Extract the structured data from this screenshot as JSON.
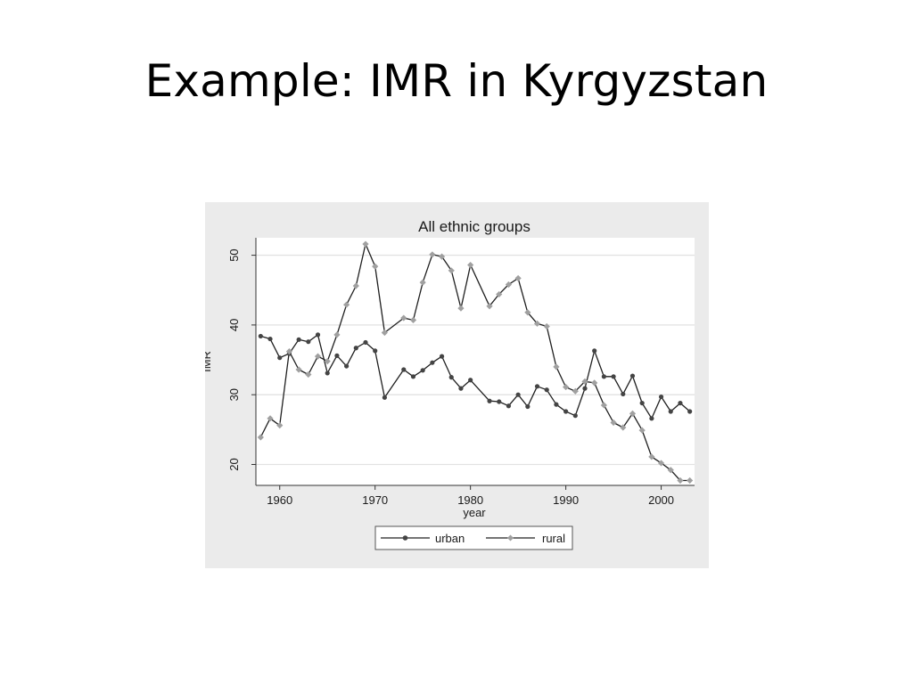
{
  "slide": {
    "title": "Example: IMR in Kyrgyzstan"
  },
  "chart_data": {
    "type": "line",
    "title": "All ethnic groups",
    "xlabel": "year",
    "ylabel": "IMR",
    "xlim": [
      1957.5,
      2003.5
    ],
    "ylim": [
      17,
      52.5
    ],
    "xticks": [
      1960,
      1970,
      1980,
      1990,
      2000
    ],
    "yticks": [
      20,
      30,
      40,
      50
    ],
    "grid": true,
    "legend_position": "bottom",
    "series": [
      {
        "name": "urban",
        "color": "#222222",
        "marker": "circle",
        "points": [
          [
            1958,
            38.4
          ],
          [
            1959,
            38.0
          ],
          [
            1960,
            35.3
          ],
          [
            1961,
            35.9
          ],
          [
            1962,
            37.9
          ],
          [
            1963,
            37.6
          ],
          [
            1964,
            38.6
          ],
          [
            1965,
            33.1
          ],
          [
            1966,
            35.6
          ],
          [
            1967,
            34.1
          ],
          [
            1968,
            36.7
          ],
          [
            1969,
            37.5
          ],
          [
            1970,
            36.3
          ],
          [
            1971,
            29.6
          ],
          [
            1973,
            33.6
          ],
          [
            1974,
            32.6
          ],
          [
            1975,
            33.5
          ],
          [
            1976,
            34.6
          ],
          [
            1977,
            35.5
          ],
          [
            1978,
            32.5
          ],
          [
            1979,
            30.9
          ],
          [
            1980,
            32.1
          ],
          [
            1982,
            29.1
          ],
          [
            1983,
            29.0
          ],
          [
            1984,
            28.4
          ],
          [
            1985,
            30.0
          ],
          [
            1986,
            28.3
          ],
          [
            1987,
            31.2
          ],
          [
            1988,
            30.7
          ],
          [
            1989,
            28.6
          ],
          [
            1990,
            27.6
          ],
          [
            1991,
            27.0
          ],
          [
            1992,
            30.9
          ],
          [
            1993,
            36.3
          ],
          [
            1994,
            32.6
          ],
          [
            1995,
            32.6
          ],
          [
            1996,
            30.1
          ],
          [
            1997,
            32.7
          ],
          [
            1998,
            28.8
          ],
          [
            1999,
            26.6
          ],
          [
            2000,
            29.7
          ],
          [
            2001,
            27.6
          ],
          [
            2002,
            28.8
          ],
          [
            2003,
            27.6
          ]
        ]
      },
      {
        "name": "rural",
        "color": "#a0a0a0",
        "marker": "diamond",
        "points": [
          [
            1958,
            23.9
          ],
          [
            1959,
            26.6
          ],
          [
            1960,
            25.6
          ],
          [
            1961,
            36.2
          ],
          [
            1962,
            33.6
          ],
          [
            1963,
            32.9
          ],
          [
            1964,
            35.5
          ],
          [
            1965,
            34.8
          ],
          [
            1966,
            38.6
          ],
          [
            1967,
            42.9
          ],
          [
            1968,
            45.6
          ],
          [
            1969,
            51.6
          ],
          [
            1970,
            48.4
          ],
          [
            1971,
            38.9
          ],
          [
            1973,
            41.0
          ],
          [
            1974,
            40.7
          ],
          [
            1975,
            46.1
          ],
          [
            1976,
            50.1
          ],
          [
            1977,
            49.8
          ],
          [
            1978,
            47.8
          ],
          [
            1979,
            42.4
          ],
          [
            1980,
            48.6
          ],
          [
            1982,
            42.7
          ],
          [
            1983,
            44.4
          ],
          [
            1984,
            45.8
          ],
          [
            1985,
            46.7
          ],
          [
            1986,
            41.8
          ],
          [
            1987,
            40.2
          ],
          [
            1988,
            39.8
          ],
          [
            1989,
            34.0
          ],
          [
            1990,
            31.1
          ],
          [
            1991,
            30.5
          ],
          [
            1992,
            31.9
          ],
          [
            1993,
            31.7
          ],
          [
            1994,
            28.5
          ],
          [
            1995,
            26.0
          ],
          [
            1996,
            25.3
          ],
          [
            1997,
            27.3
          ],
          [
            1998,
            24.9
          ],
          [
            1999,
            21.1
          ],
          [
            2000,
            20.2
          ],
          [
            2001,
            19.2
          ],
          [
            2002,
            17.7
          ],
          [
            2003,
            17.7
          ]
        ]
      }
    ]
  }
}
